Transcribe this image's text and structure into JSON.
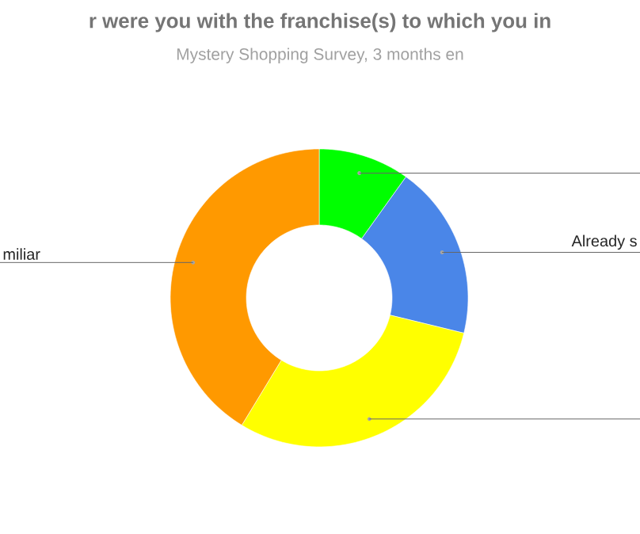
{
  "chart_data": {
    "type": "donut",
    "title": "r were you with the franchise(s) to which you in",
    "subtitle": "Mystery Shopping Survey, 3 months en",
    "categories": [
      null,
      "Already s",
      null,
      "miliar"
    ],
    "values": [
      9.9,
      18.9,
      29.9,
      41.3
    ],
    "colors": [
      "#00ff00",
      "#4a86e8",
      "#ffff00",
      "#ff9900"
    ]
  }
}
